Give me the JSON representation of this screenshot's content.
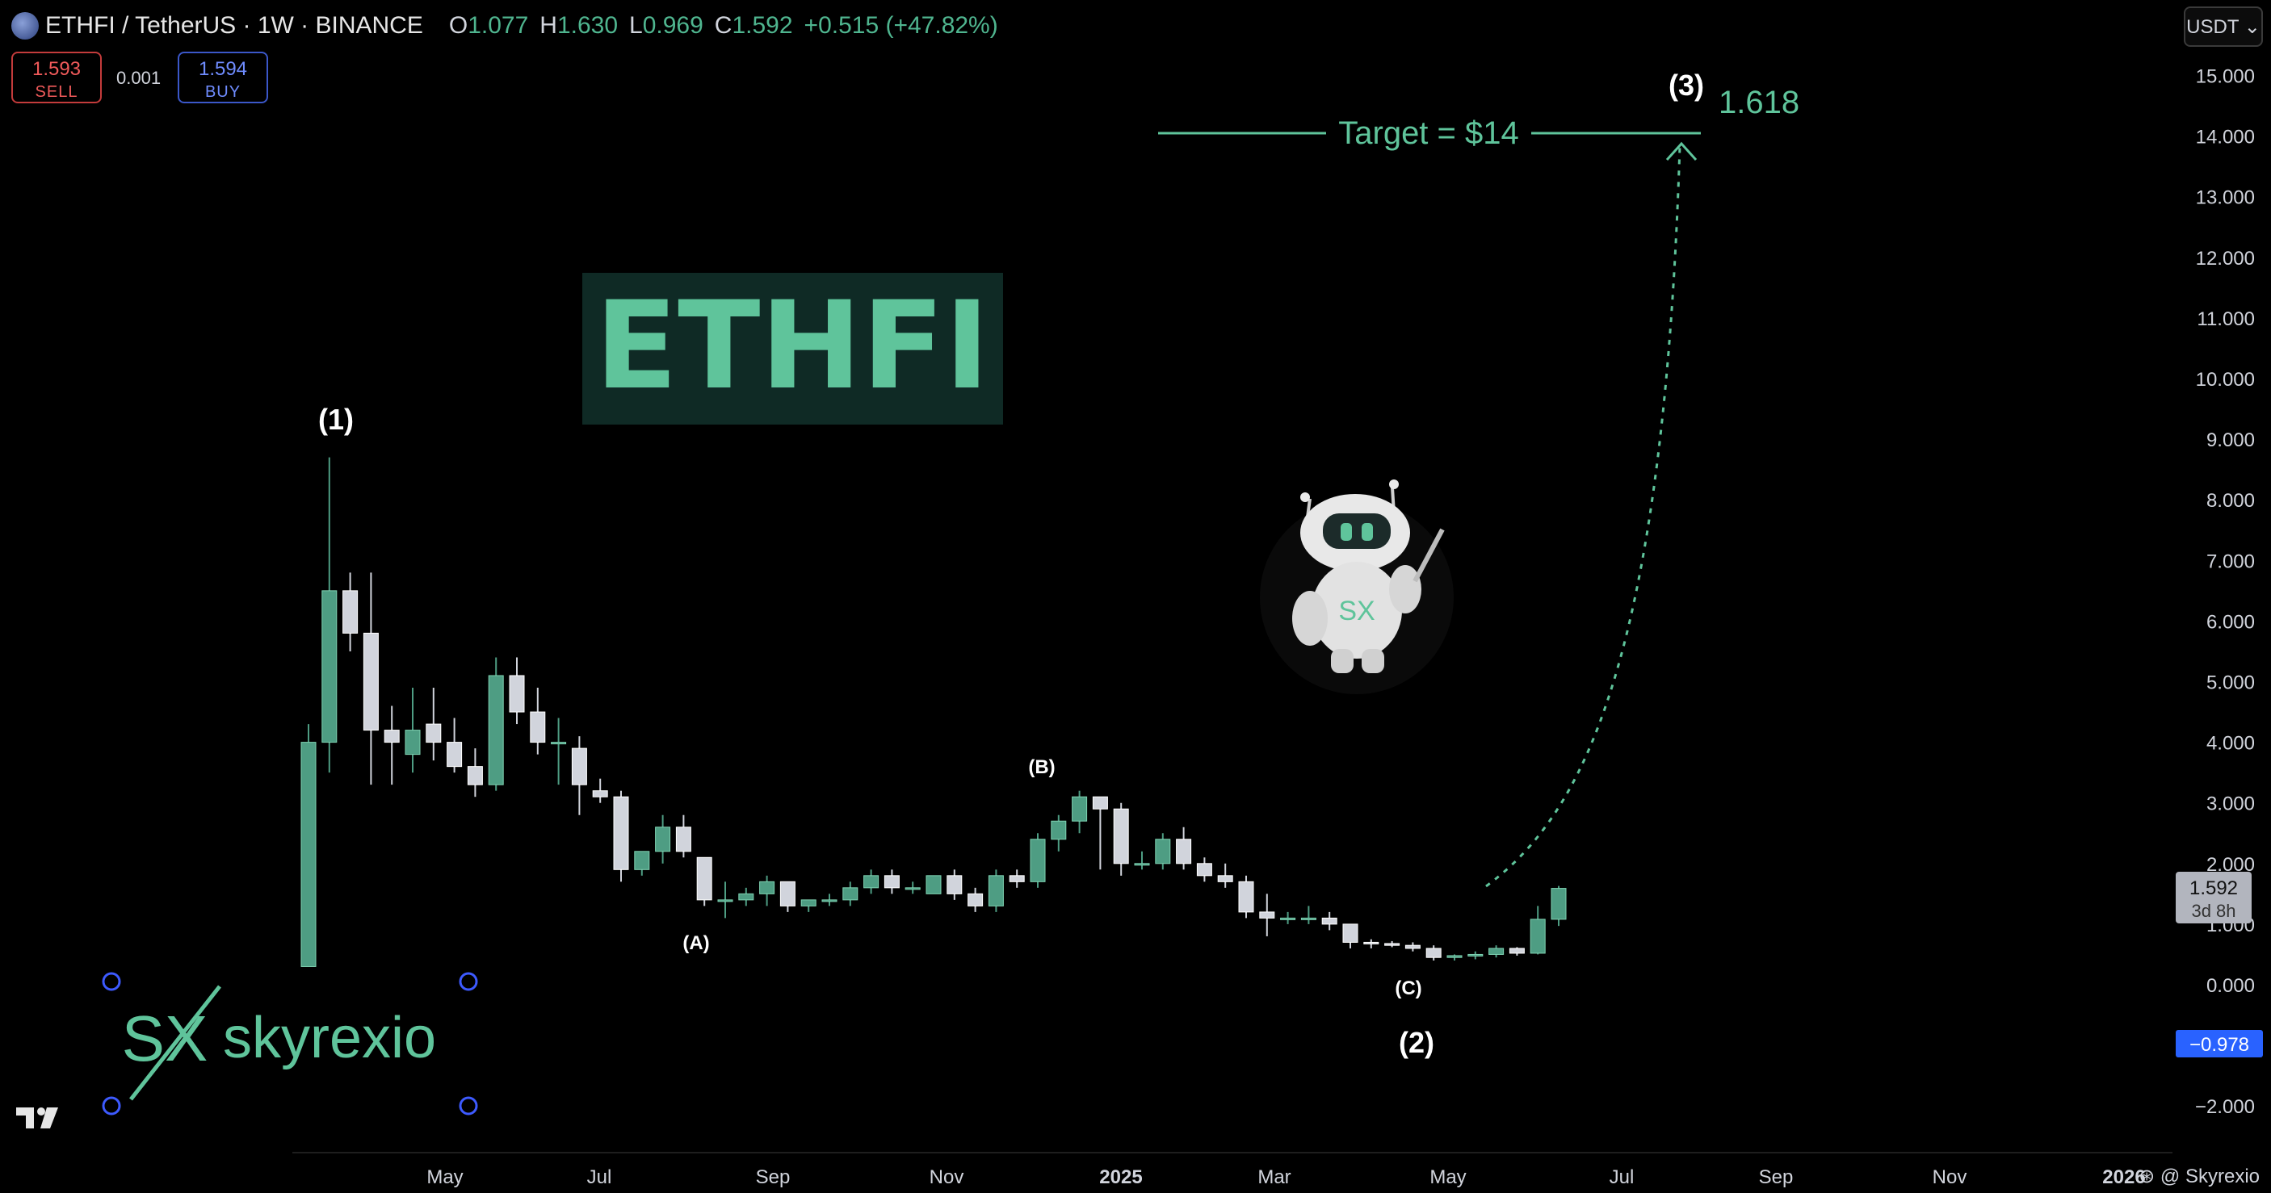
{
  "header": {
    "symbol": "ETHFI / TetherUS · 1W · BINANCE",
    "o_label": "O",
    "o_value": "1.077",
    "h_label": "H",
    "h_value": "1.630",
    "l_label": "L",
    "l_value": "0.969",
    "c_label": "C",
    "c_value": "1.592",
    "change": "+0.515 (+47.82%)"
  },
  "trade": {
    "sell_price": "1.593",
    "sell_label": "SELL",
    "spread": "0.001",
    "buy_price": "1.594",
    "buy_label": "BUY"
  },
  "currency_button": "USDT ⌄",
  "credit": "⊛ @ Skyrexio",
  "colors": {
    "up": "#4e9d83",
    "down": "#d1d4dc",
    "accent": "#5fc49b",
    "price_tag": "#b2b5be",
    "neg_tag": "#2962ff"
  },
  "chart_data": {
    "type": "candlestick",
    "x_ticks": [
      "May",
      "Jul",
      "Sep",
      "Nov",
      "2025",
      "Mar",
      "May",
      "Jul",
      "Sep",
      "Nov",
      "2026"
    ],
    "y_ticks": [
      "15.000",
      "14.000",
      "13.000",
      "12.000",
      "11.000",
      "10.000",
      "9.000",
      "8.000",
      "7.000",
      "6.000",
      "5.000",
      "4.000",
      "3.000",
      "2.000",
      "1.000",
      "0.000",
      "−2.000"
    ],
    "ylim": [
      -2.3,
      15.5
    ],
    "grid": false,
    "candles": [
      {
        "o": 0.3,
        "h": 4.3,
        "l": 0.3,
        "c": 4.0
      },
      {
        "o": 4.0,
        "h": 8.7,
        "l": 3.5,
        "c": 6.5
      },
      {
        "o": 6.5,
        "h": 6.8,
        "l": 5.5,
        "c": 5.8
      },
      {
        "o": 5.8,
        "h": 6.8,
        "l": 3.3,
        "c": 4.2
      },
      {
        "o": 4.2,
        "h": 4.6,
        "l": 3.3,
        "c": 4.0
      },
      {
        "o": 3.8,
        "h": 4.9,
        "l": 3.5,
        "c": 4.2
      },
      {
        "o": 4.3,
        "h": 4.9,
        "l": 3.7,
        "c": 4.0
      },
      {
        "o": 4.0,
        "h": 4.4,
        "l": 3.5,
        "c": 3.6
      },
      {
        "o": 3.6,
        "h": 3.9,
        "l": 3.1,
        "c": 3.3
      },
      {
        "o": 3.3,
        "h": 5.4,
        "l": 3.2,
        "c": 5.1
      },
      {
        "o": 5.1,
        "h": 5.4,
        "l": 4.3,
        "c": 4.5
      },
      {
        "o": 4.5,
        "h": 4.9,
        "l": 3.8,
        "c": 4.0
      },
      {
        "o": 4.0,
        "h": 4.4,
        "l": 3.3,
        "c": 4.0
      },
      {
        "o": 3.9,
        "h": 4.1,
        "l": 2.8,
        "c": 3.3
      },
      {
        "o": 3.2,
        "h": 3.4,
        "l": 3.0,
        "c": 3.1
      },
      {
        "o": 3.1,
        "h": 3.2,
        "l": 1.7,
        "c": 1.9
      },
      {
        "o": 1.9,
        "h": 2.2,
        "l": 1.8,
        "c": 2.2
      },
      {
        "o": 2.2,
        "h": 2.8,
        "l": 2.0,
        "c": 2.6
      },
      {
        "o": 2.6,
        "h": 2.8,
        "l": 2.1,
        "c": 2.2
      },
      {
        "o": 2.1,
        "h": 2.1,
        "l": 1.3,
        "c": 1.4
      },
      {
        "o": 1.4,
        "h": 1.7,
        "l": 1.1,
        "c": 1.4
      },
      {
        "o": 1.4,
        "h": 1.6,
        "l": 1.3,
        "c": 1.5
      },
      {
        "o": 1.5,
        "h": 1.8,
        "l": 1.3,
        "c": 1.7
      },
      {
        "o": 1.7,
        "h": 1.7,
        "l": 1.2,
        "c": 1.3
      },
      {
        "o": 1.3,
        "h": 1.4,
        "l": 1.2,
        "c": 1.4
      },
      {
        "o": 1.4,
        "h": 1.5,
        "l": 1.3,
        "c": 1.4
      },
      {
        "o": 1.4,
        "h": 1.7,
        "l": 1.3,
        "c": 1.6
      },
      {
        "o": 1.6,
        "h": 1.9,
        "l": 1.5,
        "c": 1.8
      },
      {
        "o": 1.8,
        "h": 1.9,
        "l": 1.5,
        "c": 1.6
      },
      {
        "o": 1.6,
        "h": 1.7,
        "l": 1.5,
        "c": 1.6
      },
      {
        "o": 1.5,
        "h": 1.8,
        "l": 1.5,
        "c": 1.8
      },
      {
        "o": 1.8,
        "h": 1.9,
        "l": 1.4,
        "c": 1.5
      },
      {
        "o": 1.5,
        "h": 1.6,
        "l": 1.2,
        "c": 1.3
      },
      {
        "o": 1.3,
        "h": 1.9,
        "l": 1.2,
        "c": 1.8
      },
      {
        "o": 1.8,
        "h": 1.9,
        "l": 1.6,
        "c": 1.7
      },
      {
        "o": 1.7,
        "h": 2.5,
        "l": 1.6,
        "c": 2.4
      },
      {
        "o": 2.4,
        "h": 2.8,
        "l": 2.2,
        "c": 2.7
      },
      {
        "o": 2.7,
        "h": 3.2,
        "l": 2.5,
        "c": 3.1
      },
      {
        "o": 3.1,
        "h": 3.1,
        "l": 1.9,
        "c": 2.9
      },
      {
        "o": 2.9,
        "h": 3.0,
        "l": 1.8,
        "c": 2.0
      },
      {
        "o": 2.0,
        "h": 2.2,
        "l": 1.9,
        "c": 2.0
      },
      {
        "o": 2.0,
        "h": 2.5,
        "l": 1.9,
        "c": 2.4
      },
      {
        "o": 2.4,
        "h": 2.6,
        "l": 1.9,
        "c": 2.0
      },
      {
        "o": 2.0,
        "h": 2.1,
        "l": 1.7,
        "c": 1.8
      },
      {
        "o": 1.8,
        "h": 2.0,
        "l": 1.6,
        "c": 1.7
      },
      {
        "o": 1.7,
        "h": 1.8,
        "l": 1.1,
        "c": 1.2
      },
      {
        "o": 1.2,
        "h": 1.5,
        "l": 0.8,
        "c": 1.1
      },
      {
        "o": 1.1,
        "h": 1.2,
        "l": 1.0,
        "c": 1.1
      },
      {
        "o": 1.1,
        "h": 1.3,
        "l": 1.0,
        "c": 1.1
      },
      {
        "o": 1.1,
        "h": 1.2,
        "l": 0.9,
        "c": 1.0
      },
      {
        "o": 1.0,
        "h": 1.0,
        "l": 0.6,
        "c": 0.7
      },
      {
        "o": 0.7,
        "h": 0.75,
        "l": 0.6,
        "c": 0.68
      },
      {
        "o": 0.68,
        "h": 0.72,
        "l": 0.62,
        "c": 0.65
      },
      {
        "o": 0.65,
        "h": 0.7,
        "l": 0.55,
        "c": 0.6
      },
      {
        "o": 0.6,
        "h": 0.65,
        "l": 0.4,
        "c": 0.45
      },
      {
        "o": 0.45,
        "h": 0.5,
        "l": 0.4,
        "c": 0.48
      },
      {
        "o": 0.48,
        "h": 0.55,
        "l": 0.42,
        "c": 0.5
      },
      {
        "o": 0.5,
        "h": 0.65,
        "l": 0.45,
        "c": 0.6
      },
      {
        "o": 0.6,
        "h": 0.62,
        "l": 0.48,
        "c": 0.52
      },
      {
        "o": 0.52,
        "h": 1.3,
        "l": 0.5,
        "c": 1.08
      },
      {
        "o": 1.08,
        "h": 1.63,
        "l": 0.97,
        "c": 1.59
      }
    ],
    "wave_labels": [
      "(1)",
      "(A)",
      "(B)",
      "(C)",
      "(2)",
      "(3)"
    ],
    "fib_label": "1.618",
    "target_label": "Target = $14",
    "target_value": 14,
    "title_box": "ETHFI",
    "price_tag": "1.592",
    "countdown": "3d 8h",
    "neg_tag": "−0.978",
    "logo_text": "skyrexio",
    "logo_mark": "SX"
  }
}
